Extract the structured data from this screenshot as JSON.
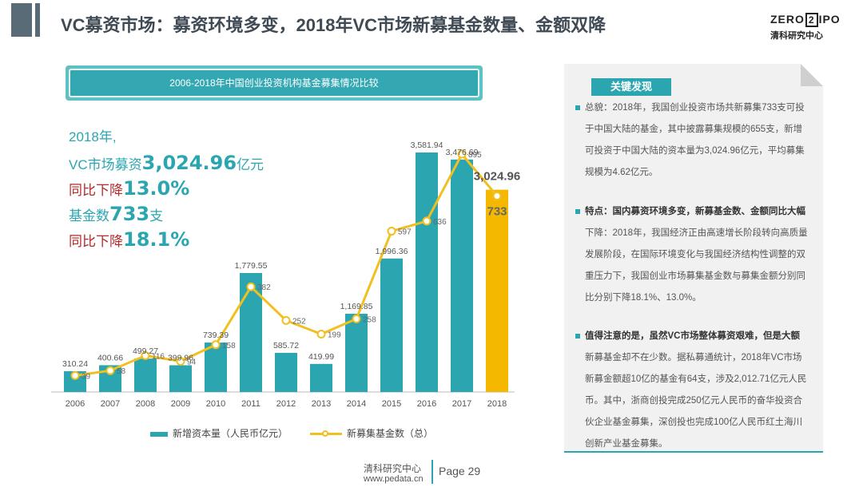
{
  "page": {
    "title": "VC募资市场：募资环境多变，2018年VC市场新募基金数量、金额双降"
  },
  "logo": {
    "main_left": "ZERO",
    "main_z": "2",
    "main_right": "IPO",
    "sub": "清科研究中心"
  },
  "chart_header": "2006-2018年中国创业投资机构基金募集情况比较",
  "stats": {
    "l1": "2018年,",
    "l2_pre": "VC市场募资",
    "l2_val": "3,024.96",
    "l2_unit": "亿元",
    "l3_pre": "同比下降",
    "l3_val": "13.0%",
    "l4_pre": "基金数",
    "l4_val": "733",
    "l4_unit": "支",
    "l5_pre": "同比下降",
    "l5_val": "18.1%"
  },
  "chart_data": {
    "type": "bar",
    "categories": [
      "2006",
      "2007",
      "2008",
      "2009",
      "2010",
      "2011",
      "2012",
      "2013",
      "2014",
      "2015",
      "2016",
      "2017",
      "2018"
    ],
    "series": [
      {
        "name": "新增资本量（人民币亿元）",
        "type": "bar",
        "values": [
          310.24,
          400.66,
          499.27,
          399.96,
          739.39,
          1779.55,
          585.72,
          419.99,
          1169.85,
          1996.36,
          3581.94,
          3476.69,
          3024.96
        ],
        "labels": [
          "310.24",
          "400.66",
          "499.27",
          "399.96",
          "739.39",
          "1,779.55",
          "585.72",
          "419.99",
          "1,169.85",
          "1,996.36",
          "3,581.94",
          "3,476.69",
          "3,024.96"
        ],
        "color": "#2ba6b1",
        "highlight_color": "#f5b800"
      },
      {
        "name": "新募集基金数（总）",
        "type": "line",
        "values": [
          39,
          58,
          116,
          94,
          158,
          382,
          252,
          199,
          258,
          597,
          636,
          895,
          733
        ],
        "labels": [
          "39",
          "58",
          "116",
          "94",
          "158",
          "382",
          "252",
          "199",
          "258",
          "597",
          "636",
          "895",
          "733"
        ],
        "color": "#f2c01e"
      }
    ],
    "legend_position": "bottom",
    "grid": false
  },
  "panel": {
    "tag": "关键发现",
    "p1": [
      "总貌：2018年，我国创业投资市场共新募集733支可投",
      "于中国大陆的基金，其中披露募集规模的655支，新增",
      "可投资于中国大陆的资本量为3,024.96亿元，平均募集",
      "规模为4.62亿元。"
    ],
    "p2": [
      "特点：国内募资环境多变，新募基金数、金额同比大幅",
      "下降：2018年，我国经济正由高速增长阶段转向高质量",
      "发展阶段，在国际环境变化与我国经济结构性调整的双",
      "重压力下，我国创业市场募集基金数与募集金额分别同",
      "比分别下降18.1%、13.0%。"
    ],
    "p3": [
      "值得注意的是，虽然VC市场整体募资艰难，但是大额",
      "新募基金却不在少数。据私募通统计，2018年VC市场",
      "新募金额超10亿的基金有64支，涉及2,012.71亿元人民",
      "币。其中，浙商创投完成250亿元人民币的奋华投资合",
      "伙企业基金募集，深创投也完成100亿人民币红土海川",
      "创新产业基金募集。"
    ]
  },
  "footer": {
    "org": "清科研究中心",
    "url": "www.pedata.cn",
    "page": "Page 29"
  }
}
